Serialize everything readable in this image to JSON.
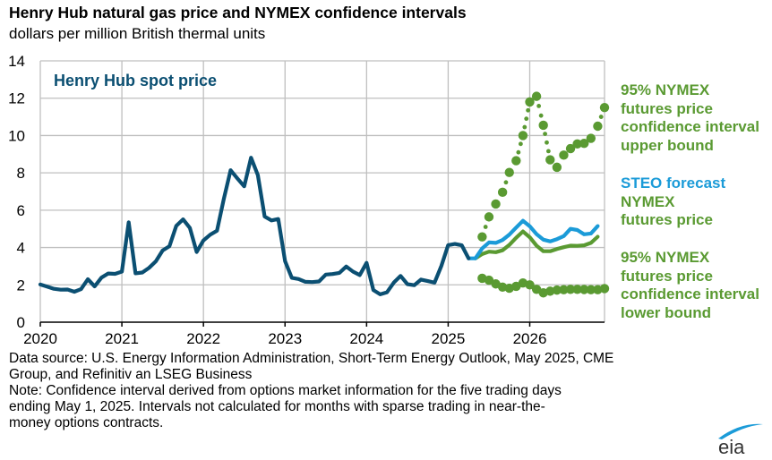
{
  "header": {
    "title": "Henry Hub natural gas price and NYMEX confidence intervals",
    "subtitle": "dollars per million British thermal units"
  },
  "annotations": {
    "spot_label": "Henry Hub spot price",
    "upper_label_lines": [
      "95% NYMEX",
      "futures price",
      "confidence interval",
      "upper bound"
    ],
    "steo_label_line1": "STEO forecast",
    "steo_label_lines": [
      "NYMEX",
      "futures price"
    ],
    "lower_label_lines": [
      "95% NYMEX",
      "futures price",
      "confidence interval",
      "lower bound"
    ]
  },
  "footnotes": {
    "source_line1": "Data source: U.S. Energy Information Administration, Short-Term Energy Outlook, May 2025, CME",
    "source_line2": "Group, and Refinitiv an LSEG Business",
    "note_line1": "Note: Confidence interval derived from options market information for the five trading days",
    "note_line2": "ending May 1, 2025. Intervals not calculated for months with sparse trading in near-the-",
    "note_line3": "money options contracts."
  },
  "logo": {
    "text": "eia",
    "accent_color": "#1b9bd8",
    "text_color": "#333333"
  },
  "colors": {
    "spot": "#0b4f72",
    "steo": "#1b9bd8",
    "nymex": "#5a9a32",
    "grid": "#bfbfbf"
  },
  "chart_data": {
    "type": "line",
    "title": "Henry Hub natural gas price and NYMEX confidence intervals",
    "ylabel": "dollars per million British thermal units",
    "xlabel": "",
    "ylim": [
      0,
      14
    ],
    "yticks": [
      0,
      2,
      4,
      6,
      8,
      10,
      12,
      14
    ],
    "xlim": [
      "2020-01",
      "2026-12"
    ],
    "xtick_labels": [
      "2020",
      "2021",
      "2022",
      "2023",
      "2024",
      "2025",
      "2026"
    ],
    "grid": true,
    "legend": "right (inline labels)",
    "series": [
      {
        "name": "Henry Hub spot price",
        "style": "solid",
        "start": "2020-01",
        "values": [
          2.02,
          1.91,
          1.79,
          1.74,
          1.75,
          1.63,
          1.77,
          2.3,
          1.92,
          2.39,
          2.61,
          2.59,
          2.71,
          5.35,
          2.62,
          2.66,
          2.91,
          3.26,
          3.84,
          4.07,
          5.16,
          5.51,
          5.05,
          3.76,
          4.38,
          4.69,
          4.9,
          6.6,
          8.14,
          7.7,
          7.28,
          8.81,
          7.88,
          5.66,
          5.45,
          5.53,
          3.27,
          2.38,
          2.31,
          2.16,
          2.15,
          2.18,
          2.55,
          2.58,
          2.64,
          2.98,
          2.71,
          2.52,
          3.18,
          1.72,
          1.49,
          1.6,
          2.12,
          2.48,
          2.04,
          1.98,
          2.28,
          2.2,
          2.12,
          3.01,
          4.13,
          4.19,
          4.12,
          3.42
        ]
      },
      {
        "name": "STEO forecast",
        "style": "solid",
        "start": "2025-04",
        "values": [
          3.42,
          3.42,
          3.95,
          4.27,
          4.25,
          4.4,
          4.69,
          5.07,
          5.43,
          5.14,
          4.72,
          4.42,
          4.33,
          4.45,
          4.61,
          5.0,
          4.94,
          4.71,
          4.75,
          5.15
        ]
      },
      {
        "name": "NYMEX futures price",
        "style": "solid",
        "start": "2025-05",
        "values": [
          3.42,
          3.65,
          3.78,
          3.75,
          3.85,
          4.14,
          4.52,
          4.86,
          4.55,
          4.1,
          3.8,
          3.8,
          3.92,
          4.02,
          4.1,
          4.09,
          4.12,
          4.25,
          4.58
        ]
      },
      {
        "name": "95% NYMEX futures price confidence interval upper bound",
        "style": "dotted-markers",
        "start": "2025-06",
        "values": [
          4.57,
          5.64,
          6.33,
          6.96,
          8.02,
          8.65,
          10.0,
          11.8,
          12.1,
          10.55,
          8.7,
          8.3,
          8.95,
          9.3,
          9.55,
          9.58,
          9.85,
          10.5,
          11.5
        ]
      },
      {
        "name": "95% NYMEX futures price confidence interval lower bound",
        "style": "dotted-markers",
        "start": "2025-06",
        "values": [
          2.35,
          2.25,
          2.05,
          1.88,
          1.82,
          1.92,
          2.1,
          2.0,
          1.76,
          1.57,
          1.66,
          1.72,
          1.74,
          1.76,
          1.76,
          1.75,
          1.74,
          1.74,
          1.8
        ]
      }
    ]
  }
}
